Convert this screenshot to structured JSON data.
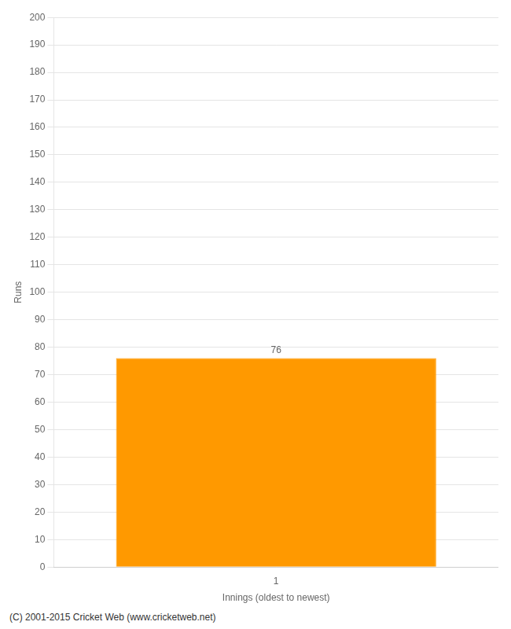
{
  "chart_data": {
    "type": "bar",
    "categories": [
      "1"
    ],
    "values": [
      76
    ],
    "color": "#FF9900",
    "xlabel": "Innings (oldest to newest)",
    "ylabel": "Runs",
    "ylim": [
      0,
      200
    ],
    "yticks": [
      0,
      10,
      20,
      30,
      40,
      50,
      60,
      70,
      80,
      90,
      100,
      110,
      120,
      130,
      140,
      150,
      160,
      170,
      180,
      190,
      200
    ],
    "grid": "y",
    "data_labels": true,
    "annotations": [
      "(C) 2001-2015 Cricket Web (www.cricketweb.net)"
    ]
  }
}
